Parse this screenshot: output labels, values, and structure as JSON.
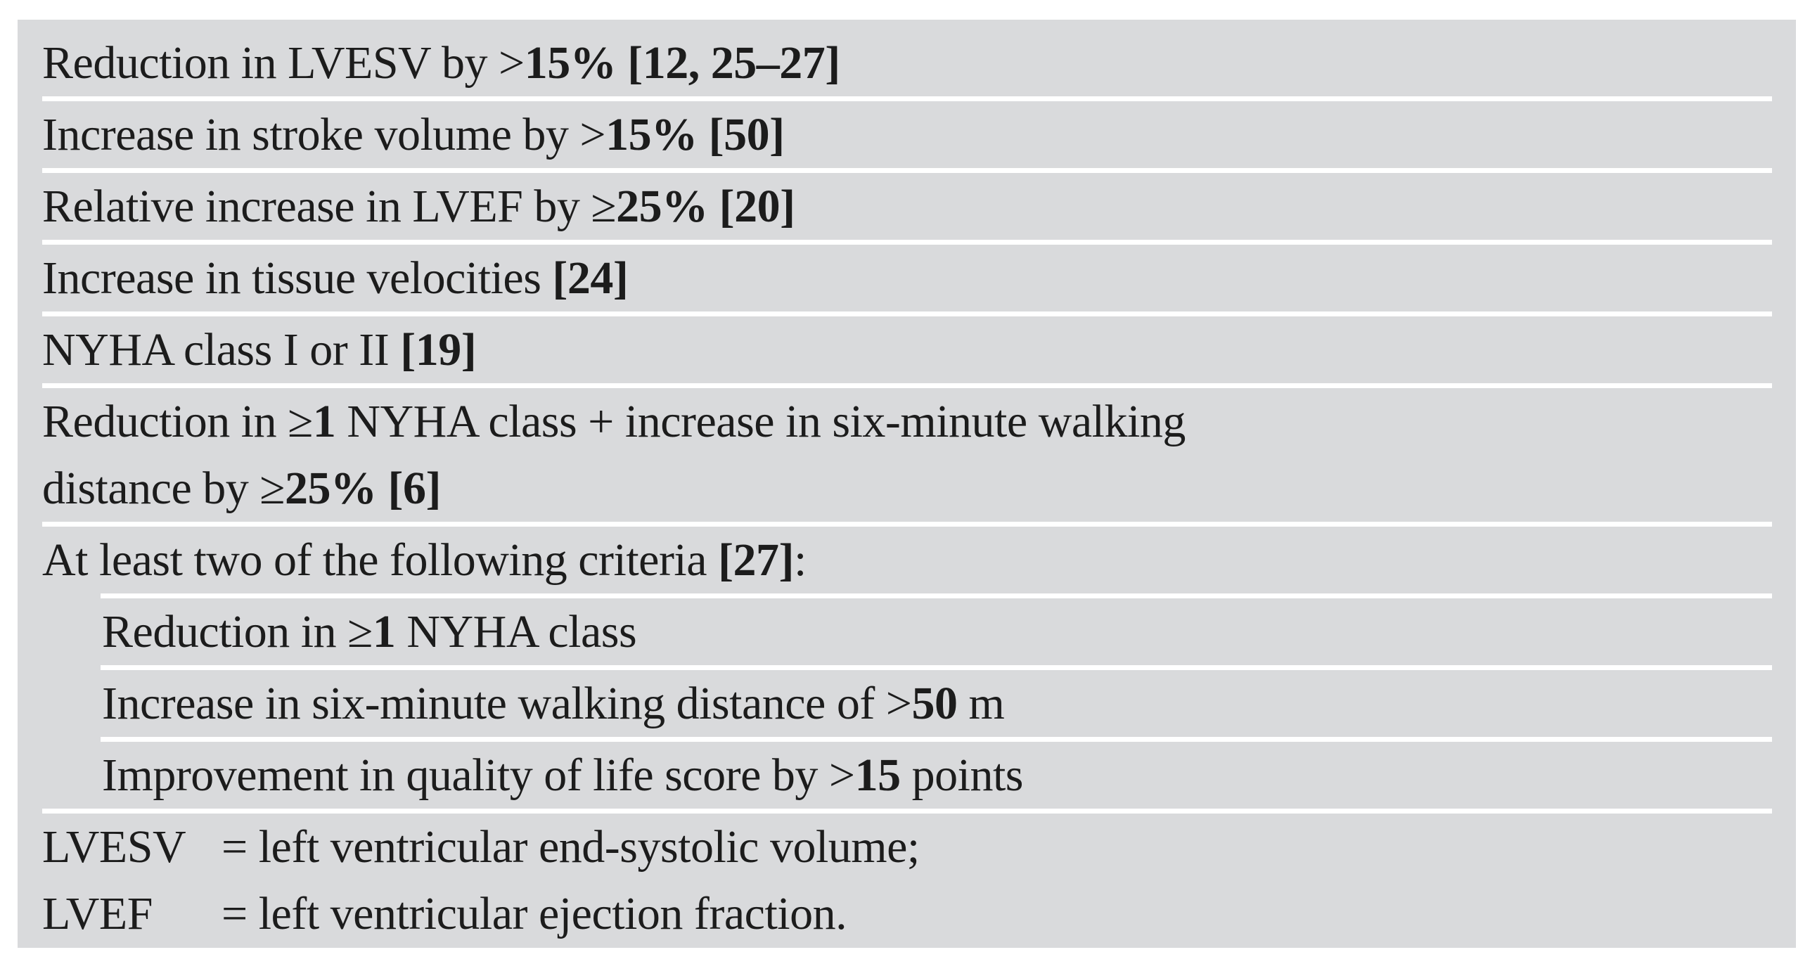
{
  "table": {
    "background": "#d9dadc",
    "separator_color": "#ffffff",
    "text_color": "#1c1c1c",
    "rows": [
      {
        "indent": false,
        "sep": "full",
        "lines": [
          [
            {
              "t": "Reduction in LVESV by >"
            },
            {
              "t": "15%",
              "b": true
            },
            {
              "t": " "
            },
            {
              "t": "[12, 25–27]",
              "b": true
            }
          ]
        ]
      },
      {
        "indent": false,
        "sep": "full",
        "lines": [
          [
            {
              "t": "Increase in stroke volume by >"
            },
            {
              "t": "15%",
              "b": true
            },
            {
              "t": " "
            },
            {
              "t": "[50]",
              "b": true
            }
          ]
        ]
      },
      {
        "indent": false,
        "sep": "full",
        "lines": [
          [
            {
              "t": "Relative increase in LVEF by ≥"
            },
            {
              "t": "25%",
              "b": true
            },
            {
              "t": " "
            },
            {
              "t": "[20]",
              "b": true
            }
          ]
        ]
      },
      {
        "indent": false,
        "sep": "full",
        "lines": [
          [
            {
              "t": "Increase in tissue velocities "
            },
            {
              "t": "[24]",
              "b": true
            }
          ]
        ]
      },
      {
        "indent": false,
        "sep": "full",
        "lines": [
          [
            {
              "t": "NYHA class I or II "
            },
            {
              "t": "[19]",
              "b": true
            }
          ]
        ]
      },
      {
        "indent": false,
        "sep": "full",
        "lines": [
          [
            {
              "t": "Reduction in ≥"
            },
            {
              "t": "1",
              "b": true
            },
            {
              "t": " NYHA class + increase in six-minute walking"
            }
          ],
          [
            {
              "t": "distance by ≥"
            },
            {
              "t": "25%",
              "b": true
            },
            {
              "t": " "
            },
            {
              "t": "[6]",
              "b": true
            }
          ]
        ]
      },
      {
        "indent": false,
        "sep": "indent",
        "lines": [
          [
            {
              "t": "At least two of the following criteria "
            },
            {
              "t": "[27]",
              "b": true
            },
            {
              "t": ":"
            }
          ]
        ]
      },
      {
        "indent": true,
        "sep": "indent",
        "lines": [
          [
            {
              "t": "Reduction in ≥"
            },
            {
              "t": "1",
              "b": true
            },
            {
              "t": " NYHA class"
            }
          ]
        ]
      },
      {
        "indent": true,
        "sep": "indent",
        "lines": [
          [
            {
              "t": "Increase in six-minute walking distance of >"
            },
            {
              "t": "50",
              "b": true
            },
            {
              "t": " m"
            }
          ]
        ]
      },
      {
        "indent": true,
        "sep": "full",
        "lines": [
          [
            {
              "t": "Improvement in quality of life score by >"
            },
            {
              "t": "15",
              "b": true
            },
            {
              "t": " points"
            }
          ]
        ]
      }
    ],
    "footnotes": [
      {
        "abbr": "LVESV",
        "def": "= left ventricular end-systolic volume;"
      },
      {
        "abbr": "LVEF",
        "def": "= left ventricular ejection fraction."
      }
    ]
  }
}
